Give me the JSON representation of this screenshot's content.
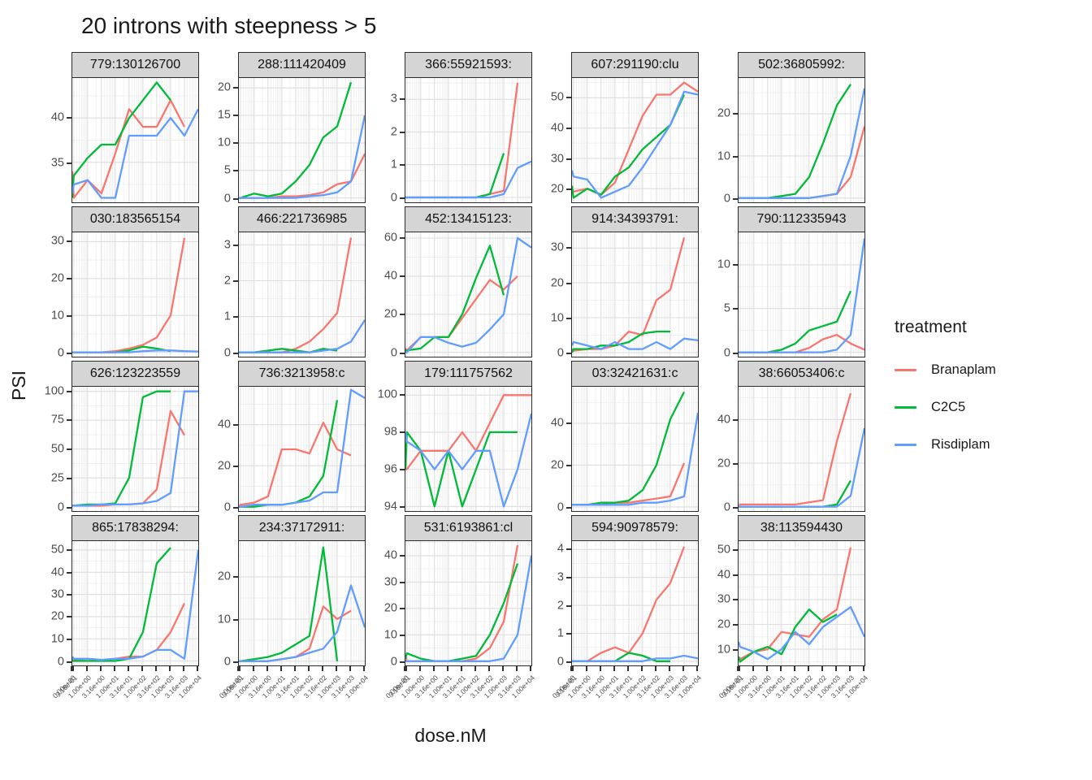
{
  "title": "20 introns with steepness > 5",
  "x_axis_label": "dose.nM",
  "y_axis_label": "PSI",
  "chart_data": {
    "type": "line",
    "facet_grid": [
      4,
      5
    ],
    "x_scale": "log10-with-zero",
    "x_doses": [
      0,
      0.316,
      1,
      3.16,
      10,
      31.6,
      100,
      316,
      1000,
      3160,
      10000
    ],
    "x_tick_labels": [
      "0.00e+00",
      "3.16e-01",
      "1.00e+00",
      "3.16e+00",
      "1.00e+01",
      "3.16e+01",
      "1.00e+02",
      "3.16e+02",
      "1.00e+03",
      "3.16e+03",
      "1.00e+04"
    ],
    "legend": {
      "title": "treatment",
      "items": [
        {
          "name": "Branaplam",
          "color": "#F8766D"
        },
        {
          "name": "C2C5",
          "color": "#00BA38"
        },
        {
          "name": "Risdiplam",
          "color": "#619CFF"
        }
      ]
    },
    "layout": {
      "strip_bg": "#d5d5d5",
      "panel_border": "#2b2b2b",
      "grid_major": "#dedede",
      "grid_minor": "#efefef",
      "axis_text_color": "#4d4d4d"
    },
    "panels": [
      {
        "label": "779:130126700",
        "ylim": [
          30.5,
          44.5
        ],
        "yticks": [
          35,
          40
        ],
        "series": {
          "Branaplam": [
            34,
            31,
            33,
            31.5,
            36,
            41,
            39,
            39,
            42,
            39,
            null
          ],
          "C2C5": [
            31,
            33.5,
            35.5,
            37,
            37,
            40,
            42,
            44,
            42,
            null,
            null
          ],
          "Risdiplam": [
            31.5,
            32.5,
            33,
            31,
            31,
            38,
            38,
            38,
            40,
            38,
            41
          ]
        }
      },
      {
        "label": "288:111420409",
        "ylim": [
          -0.8,
          21.8
        ],
        "yticks": [
          0,
          5,
          10,
          15,
          20
        ],
        "series": {
          "Branaplam": [
            0,
            0,
            0,
            0,
            0.3,
            0.3,
            0.5,
            1,
            2.5,
            3,
            8
          ],
          "C2C5": [
            0,
            0,
            0.8,
            0.3,
            0.8,
            3,
            6,
            11,
            13,
            21,
            null
          ],
          "Risdiplam": [
            0,
            0,
            0,
            0,
            0,
            0,
            0.3,
            0.5,
            1,
            3,
            15
          ]
        }
      },
      {
        "label": "366:55921593:",
        "ylim": [
          -0.15,
          3.65
        ],
        "yticks": [
          0,
          1,
          2,
          3
        ],
        "series": {
          "Branaplam": [
            0,
            0,
            0,
            0,
            0,
            0,
            0,
            0.1,
            0.2,
            3.5,
            null
          ],
          "C2C5": [
            0,
            0,
            0,
            0,
            0,
            0,
            0,
            0.1,
            1.35,
            null,
            null
          ],
          "Risdiplam": [
            0,
            0,
            0,
            0,
            0,
            0,
            0,
            0,
            0.1,
            0.9,
            1.1
          ]
        }
      },
      {
        "label": "607:291190:clu",
        "ylim": [
          15.5,
          56.5
        ],
        "yticks": [
          20,
          30,
          40,
          50
        ],
        "series": {
          "Branaplam": [
            20,
            19,
            20,
            18,
            22,
            33,
            44,
            51,
            51,
            55,
            52
          ],
          "C2C5": [
            21,
            17,
            20,
            18,
            24,
            27,
            33,
            37,
            41,
            51,
            null
          ],
          "Risdiplam": [
            26,
            24,
            23,
            17,
            19,
            21,
            27,
            34,
            41,
            52,
            51
          ]
        }
      },
      {
        "label": "502:36805992:",
        "ylim": [
          -1,
          28.5
        ],
        "yticks": [
          0,
          10,
          20
        ],
        "series": {
          "Branaplam": [
            0,
            0,
            0,
            0,
            0,
            0,
            0,
            0.5,
            1,
            5,
            17
          ],
          "C2C5": [
            0,
            0,
            0,
            0,
            0.5,
            1,
            5,
            13,
            22,
            27,
            null
          ],
          "Risdiplam": [
            0,
            0,
            0,
            0,
            0,
            0,
            0,
            0.5,
            1,
            10,
            26
          ]
        }
      },
      {
        "label": "030:183565154",
        "ylim": [
          -1.2,
          32.5
        ],
        "yticks": [
          0,
          10,
          20,
          30
        ],
        "series": {
          "Branaplam": [
            0,
            0,
            0,
            0,
            0.3,
            1,
            2,
            4,
            10,
            31,
            null
          ],
          "C2C5": [
            0,
            0,
            0,
            0,
            0,
            0.5,
            1.5,
            1,
            0.3,
            null,
            null
          ],
          "Risdiplam": [
            0,
            0,
            0,
            0,
            0,
            0,
            0.3,
            0.5,
            0.5,
            0.3,
            0.2
          ]
        }
      },
      {
        "label": "466:221736985",
        "ylim": [
          -0.12,
          3.35
        ],
        "yticks": [
          0,
          1,
          2,
          3
        ],
        "series": {
          "Branaplam": [
            0,
            0,
            0,
            0,
            0,
            0.1,
            0.3,
            0.65,
            1.1,
            3.2,
            null
          ],
          "C2C5": [
            0,
            0,
            0,
            0.05,
            0.1,
            0.05,
            0,
            0.1,
            0.05,
            null,
            null
          ],
          "Risdiplam": [
            0,
            0,
            0,
            0,
            0,
            0,
            0,
            0.05,
            0.1,
            0.3,
            0.9
          ]
        }
      },
      {
        "label": "452:13415123:",
        "ylim": [
          -2.3,
          63
        ],
        "yticks": [
          0,
          20,
          40,
          60
        ],
        "series": {
          "Branaplam": [
            2,
            1,
            8,
            8,
            8,
            18,
            28,
            38,
            33,
            40,
            null
          ],
          "C2C5": [
            1,
            1,
            2,
            8,
            8,
            20,
            39,
            56,
            30,
            null,
            null
          ],
          "Risdiplam": [
            0,
            0,
            8,
            8,
            5,
            3,
            5,
            12,
            20,
            60,
            55
          ]
        }
      },
      {
        "label": "914:34393791:",
        "ylim": [
          -1.2,
          34.5
        ],
        "yticks": [
          0,
          10,
          20,
          30
        ],
        "series": {
          "Branaplam": [
            1,
            0.5,
            1,
            1,
            2,
            6,
            5,
            15,
            18,
            33,
            null
          ],
          "C2C5": [
            0,
            1,
            1,
            2,
            2,
            3,
            5.5,
            6,
            6,
            null,
            null
          ],
          "Risdiplam": [
            2,
            3,
            2,
            1,
            3,
            1,
            1,
            3,
            1,
            4,
            3.5
          ]
        }
      },
      {
        "label": "790:112335943",
        "ylim": [
          -0.5,
          13.7
        ],
        "yticks": [
          0,
          5,
          10
        ],
        "series": {
          "Branaplam": [
            0,
            0,
            0,
            0,
            0,
            0,
            0.5,
            1.5,
            2,
            1,
            0.3
          ],
          "C2C5": [
            0,
            0,
            0,
            0,
            0.3,
            1,
            2.5,
            3,
            3.5,
            7,
            null
          ],
          "Risdiplam": [
            0,
            0,
            0,
            0,
            0,
            0,
            0,
            0,
            0.3,
            2,
            13
          ]
        }
      },
      {
        "label": "626:123223559",
        "ylim": [
          -3.7,
          104
        ],
        "yticks": [
          0,
          25,
          50,
          75,
          100
        ],
        "series": {
          "Branaplam": [
            1,
            1,
            1,
            1,
            2,
            2,
            3,
            15,
            83,
            62,
            null
          ],
          "C2C5": [
            1,
            1,
            2,
            2,
            3,
            25,
            95,
            100,
            100,
            null,
            null
          ],
          "Risdiplam": [
            1,
            1,
            1,
            2,
            2,
            2,
            3,
            5,
            12,
            100,
            100
          ]
        }
      },
      {
        "label": "736:3213958:c",
        "ylim": [
          -2.1,
          58.5
        ],
        "yticks": [
          0,
          20,
          40
        ],
        "series": {
          "Branaplam": [
            0,
            1,
            2,
            5,
            28,
            28,
            26,
            41,
            28,
            25,
            null
          ],
          "C2C5": [
            0,
            0,
            0,
            1,
            1,
            2,
            5,
            15,
            52,
            null,
            null
          ],
          "Risdiplam": [
            0,
            0,
            1,
            1,
            1,
            2,
            3,
            7,
            7,
            57,
            53
          ]
        }
      },
      {
        "label": "179:111757562",
        "ylim": [
          93.75,
          100.45
        ],
        "yticks": [
          94,
          96,
          98,
          100
        ],
        "series": {
          "Branaplam": [
            96,
            96,
            97,
            97,
            97,
            98,
            97,
            98.5,
            100,
            100,
            100
          ],
          "C2C5": [
            96,
            98,
            97,
            94,
            97,
            94,
            96,
            98,
            98,
            98,
            null
          ],
          "Risdiplam": [
            98,
            97.5,
            97,
            96,
            97,
            96,
            97,
            97,
            94,
            96,
            99
          ]
        }
      },
      {
        "label": "03:32421631:c",
        "ylim": [
          -2,
          57.5
        ],
        "yticks": [
          0,
          20,
          40
        ],
        "series": {
          "Branaplam": [
            1,
            1,
            1,
            1,
            2,
            2,
            3,
            4,
            5,
            21,
            null
          ],
          "C2C5": [
            1,
            1,
            1,
            2,
            2,
            3,
            8,
            20,
            42,
            55,
            null
          ],
          "Risdiplam": [
            1,
            1,
            1,
            1,
            1,
            1,
            2,
            2,
            3,
            5,
            45
          ]
        }
      },
      {
        "label": "38:66053406:c",
        "ylim": [
          -2,
          55
        ],
        "yticks": [
          0,
          20,
          40
        ],
        "series": {
          "Branaplam": [
            0,
            1,
            1,
            1,
            1,
            1,
            2,
            3,
            30,
            52,
            null
          ],
          "C2C5": [
            0,
            0,
            0,
            0,
            0,
            0,
            0,
            0,
            1,
            12,
            null
          ],
          "Risdiplam": [
            0,
            0,
            0,
            0,
            0,
            0,
            0,
            0,
            0,
            5,
            36
          ]
        }
      },
      {
        "label": "865:17838294:",
        "ylim": [
          -2,
          54
        ],
        "yticks": [
          0,
          10,
          20,
          30,
          40,
          50
        ],
        "series": {
          "Branaplam": [
            1,
            0.5,
            1,
            0.5,
            1,
            2,
            2,
            5,
            13,
            26,
            null
          ],
          "C2C5": [
            0,
            0,
            0,
            0,
            0,
            1,
            13,
            44,
            51,
            null,
            null
          ],
          "Risdiplam": [
            2,
            1,
            1,
            0.5,
            1,
            1,
            2,
            5,
            5,
            1,
            50
          ]
        }
      },
      {
        "label": "234:37172911:",
        "ylim": [
          -1,
          28.5
        ],
        "yticks": [
          0,
          10,
          20
        ],
        "series": {
          "Branaplam": [
            0,
            0,
            0,
            0,
            0.5,
            1,
            3,
            13,
            10,
            12,
            null
          ],
          "C2C5": [
            0,
            0,
            0.5,
            1,
            2,
            4,
            6,
            27,
            0,
            null,
            null
          ],
          "Risdiplam": [
            0,
            0,
            0,
            0,
            0.5,
            1,
            2,
            3,
            7,
            18,
            8
          ]
        }
      },
      {
        "label": "531:6193861:cl",
        "ylim": [
          -1.6,
          45.5
        ],
        "yticks": [
          0,
          10,
          20,
          30,
          40
        ],
        "series": {
          "Branaplam": [
            2,
            0,
            0,
            0,
            0,
            0,
            1,
            5,
            15,
            44,
            null
          ],
          "C2C5": [
            1,
            3,
            1,
            0,
            0,
            1,
            2,
            10,
            22,
            37,
            null
          ],
          "Risdiplam": [
            0,
            0,
            0,
            0,
            0,
            0,
            0,
            0,
            1,
            10,
            40
          ]
        }
      },
      {
        "label": "594:90978579:",
        "ylim": [
          -0.15,
          4.3
        ],
        "yticks": [
          0,
          1,
          2,
          3,
          4
        ],
        "series": {
          "Branaplam": [
            0,
            0,
            0,
            0.3,
            0.5,
            0.3,
            1,
            2.2,
            2.8,
            4.1,
            null
          ],
          "C2C5": [
            0,
            0,
            0,
            0,
            0,
            0.3,
            0.2,
            0,
            0,
            null,
            null
          ],
          "Risdiplam": [
            0,
            0,
            0,
            0,
            0,
            0,
            0,
            0.1,
            0.1,
            0.2,
            0.1
          ]
        }
      },
      {
        "label": "38:113594430",
        "ylim": [
          3.5,
          53.5
        ],
        "yticks": [
          10,
          20,
          30,
          40,
          50
        ],
        "series": {
          "Branaplam": [
            7,
            6,
            9,
            10,
            17,
            16,
            15,
            22,
            26,
            51,
            null
          ],
          "C2C5": [
            7,
            5,
            9,
            11,
            8,
            19,
            26,
            21,
            24,
            null,
            null
          ],
          "Risdiplam": [
            13,
            11,
            9,
            6,
            10,
            17,
            12,
            19,
            23,
            27,
            15
          ]
        }
      }
    ]
  }
}
